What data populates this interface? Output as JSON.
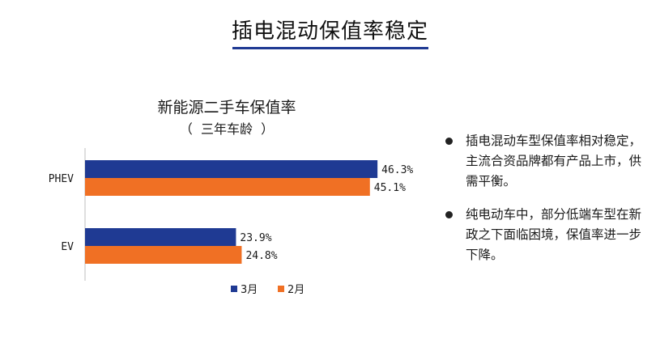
{
  "slide": {
    "title": "插电混动保值率稳定"
  },
  "chart_data": {
    "type": "bar",
    "orientation": "horizontal",
    "title": "新能源二手车保值率",
    "subtitle": "（  三年车龄  ）",
    "categories": [
      "PHEV",
      "EV"
    ],
    "series": [
      {
        "name": "3月",
        "color": "#1f3a93",
        "values": [
          46.3,
          23.9
        ]
      },
      {
        "name": "2月",
        "color": "#f07024",
        "values": [
          45.1,
          24.8
        ]
      }
    ],
    "value_labels": [
      [
        "46.3%",
        "23.9%"
      ],
      [
        "45.1%",
        "24.8%"
      ]
    ],
    "xlim": [
      0,
      50
    ],
    "grid": false,
    "legend_position": "bottom"
  },
  "notes": [
    "插电混动车型保值率相对稳定，主流合资品牌都有产品上市，供需平衡。",
    "纯电动车中，部分低端车型在新政之下面临困境，保值率进一步下降。"
  ]
}
